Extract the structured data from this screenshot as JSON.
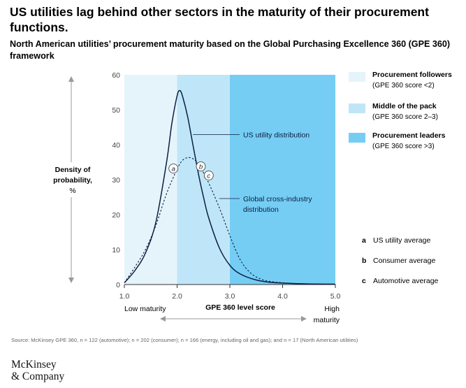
{
  "title": "US utilities lag behind other sectors in the maturity of their procurement functions.",
  "subtitle": "North American utilities’ procurement maturity based on the Global Purchasing Excellence 360 (GPE 360) framework",
  "source": "Source: McKinsey GPE 360, n = 122 (automotive); n = 202 (consumer); n = 166 (energy, including oil and gas); and n = 17 (North American utilities)",
  "logo": {
    "line1": "McKinsey",
    "line2": "& Company"
  },
  "legend": [
    {
      "label": "Procurement followers",
      "sub": "(GPE 360 score <2)",
      "color": "#e5f4fb"
    },
    {
      "label": "Middle of the pack",
      "sub": "(GPE 360 score 2–3)",
      "color": "#bfe6f8"
    },
    {
      "label": "Procurement leaders",
      "sub": "(GPE 360 score >3)",
      "color": "#75cdf4"
    }
  ],
  "key": [
    {
      "letter": "a",
      "text": "US utility average"
    },
    {
      "letter": "b",
      "text": "Consumer average"
    },
    {
      "letter": "c",
      "text": "Automotive average"
    }
  ],
  "chart_data": {
    "type": "line",
    "xlabel": "GPE 360 level score",
    "x_low_label": "Low maturity",
    "x_high_label": "High maturity",
    "ylabel_bold": "Density of probability,",
    "ylabel_unit": "%",
    "xlim": [
      1.0,
      5.0
    ],
    "ylim": [
      0,
      60
    ],
    "xticks": [
      "1.0",
      "2.0",
      "3.0",
      "4.0",
      "5.0"
    ],
    "yticks": [
      "0",
      "10",
      "20",
      "30",
      "40",
      "50",
      "60"
    ],
    "regions": [
      {
        "label": "Procurement followers",
        "from": 1.0,
        "to": 2.0,
        "color": "#e5f4fb"
      },
      {
        "label": "Middle of the pack",
        "from": 2.0,
        "to": 3.0,
        "color": "#bfe6f8"
      },
      {
        "label": "Procurement leaders",
        "from": 3.0,
        "to": 5.0,
        "color": "#75cdf4"
      }
    ],
    "series": [
      {
        "name": "US utility distribution",
        "style": "solid",
        "x": [
          1.0,
          1.2,
          1.4,
          1.6,
          1.8,
          1.9,
          2.0,
          2.05,
          2.1,
          2.2,
          2.3,
          2.4,
          2.5,
          2.6,
          2.8,
          3.0,
          3.2,
          3.5,
          3.8,
          4.2,
          4.6,
          5.0
        ],
        "y": [
          0.5,
          4,
          9,
          18,
          35,
          46,
          54,
          55.5,
          54,
          48,
          40,
          32,
          25,
          19,
          10.5,
          5.5,
          3,
          1.3,
          0.6,
          0.3,
          0.15,
          0.1
        ]
      },
      {
        "name": "Global cross-industry distribution",
        "style": "dashed",
        "x": [
          1.0,
          1.2,
          1.4,
          1.6,
          1.8,
          2.0,
          2.1,
          2.2,
          2.3,
          2.4,
          2.5,
          2.6,
          2.8,
          3.0,
          3.2,
          3.4,
          3.6,
          3.8,
          4.2,
          4.6,
          5.0
        ],
        "y": [
          0.5,
          5,
          10,
          17,
          26,
          33,
          35.5,
          36.3,
          36,
          34.5,
          32,
          29,
          22,
          14,
          7,
          3.2,
          1.5,
          0.8,
          0.3,
          0.15,
          0.1
        ]
      }
    ],
    "annotations": [
      {
        "letter": "a",
        "x": 1.93,
        "y": 33.2
      },
      {
        "letter": "b",
        "x": 2.45,
        "y": 33.8
      },
      {
        "letter": "c",
        "x": 2.6,
        "y": 31.2
      }
    ]
  }
}
